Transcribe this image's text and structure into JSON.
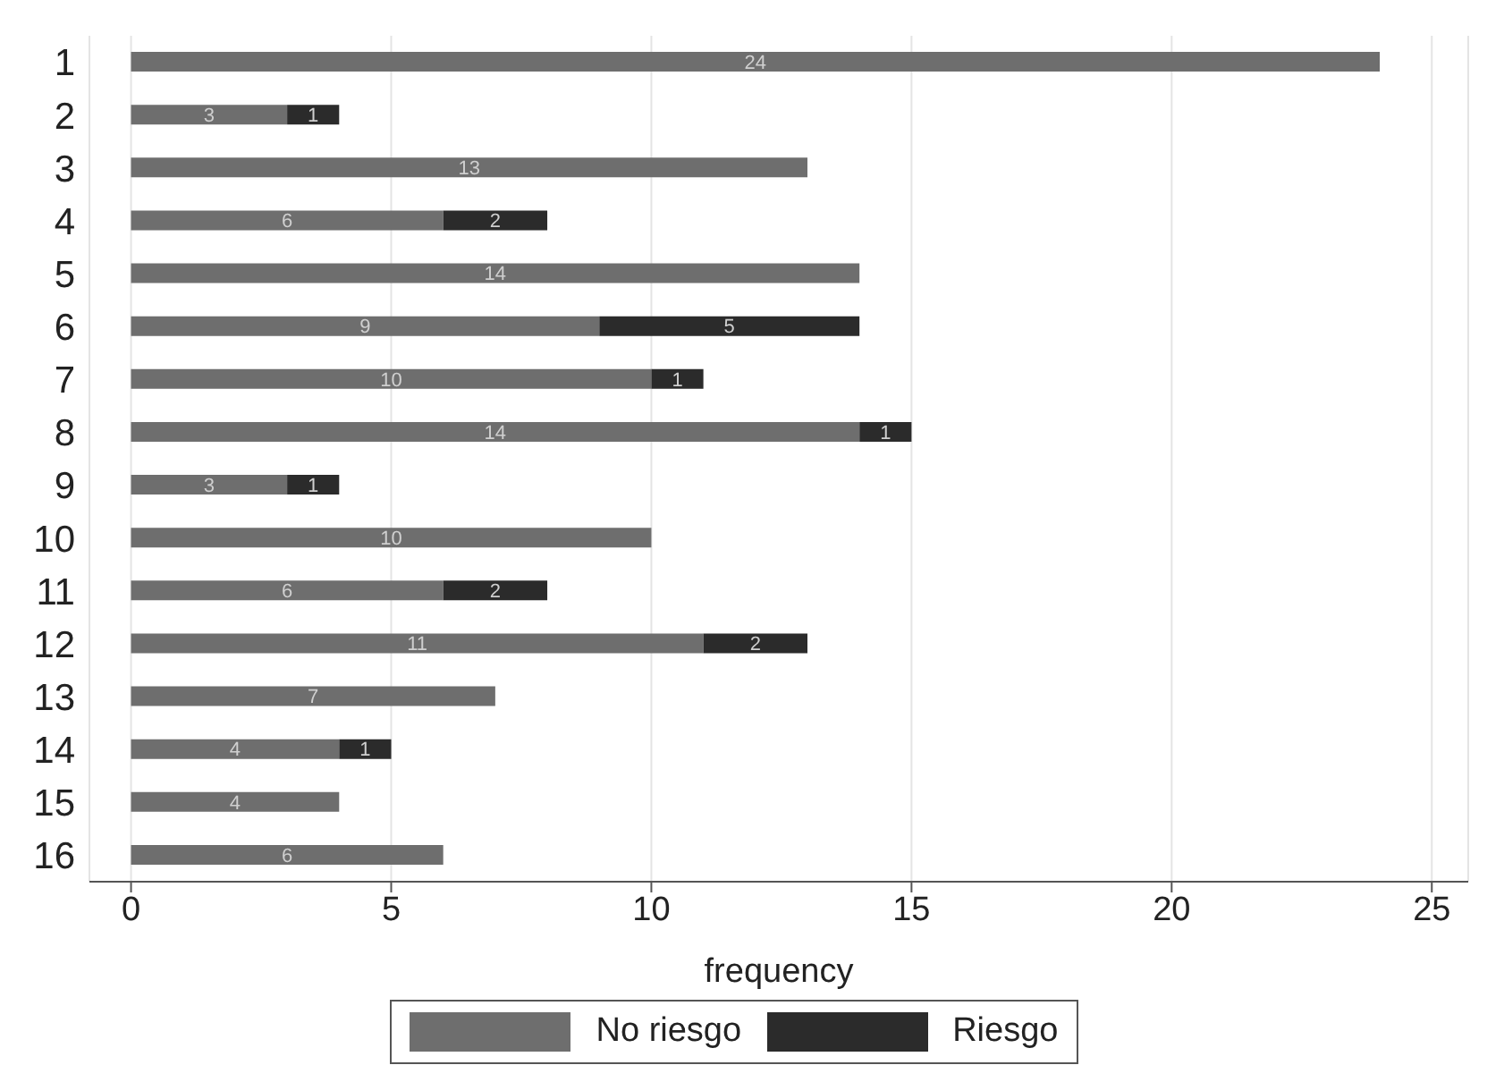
{
  "chart_data": {
    "type": "bar",
    "orientation": "horizontal",
    "stacked": true,
    "xlabel": "frequency",
    "categories": [
      "1",
      "2",
      "3",
      "4",
      "5",
      "6",
      "7",
      "8",
      "9",
      "10",
      "11",
      "12",
      "13",
      "14",
      "15",
      "16"
    ],
    "series": [
      {
        "name": "No riesgo",
        "color": "#6e6e6e",
        "values": [
          24,
          3,
          13,
          6,
          14,
          9,
          10,
          14,
          3,
          10,
          6,
          11,
          7,
          4,
          4,
          6
        ]
      },
      {
        "name": "Riesgo",
        "color": "#2b2b2b",
        "values": [
          null,
          1,
          null,
          2,
          null,
          5,
          1,
          1,
          1,
          null,
          2,
          2,
          null,
          1,
          null,
          null
        ]
      }
    ],
    "xlim": [
      -0.8,
      25.7
    ],
    "xticks": [
      0,
      5,
      10,
      15,
      20,
      25
    ],
    "grid": "x",
    "legend": "bottom",
    "data_labels": true
  }
}
